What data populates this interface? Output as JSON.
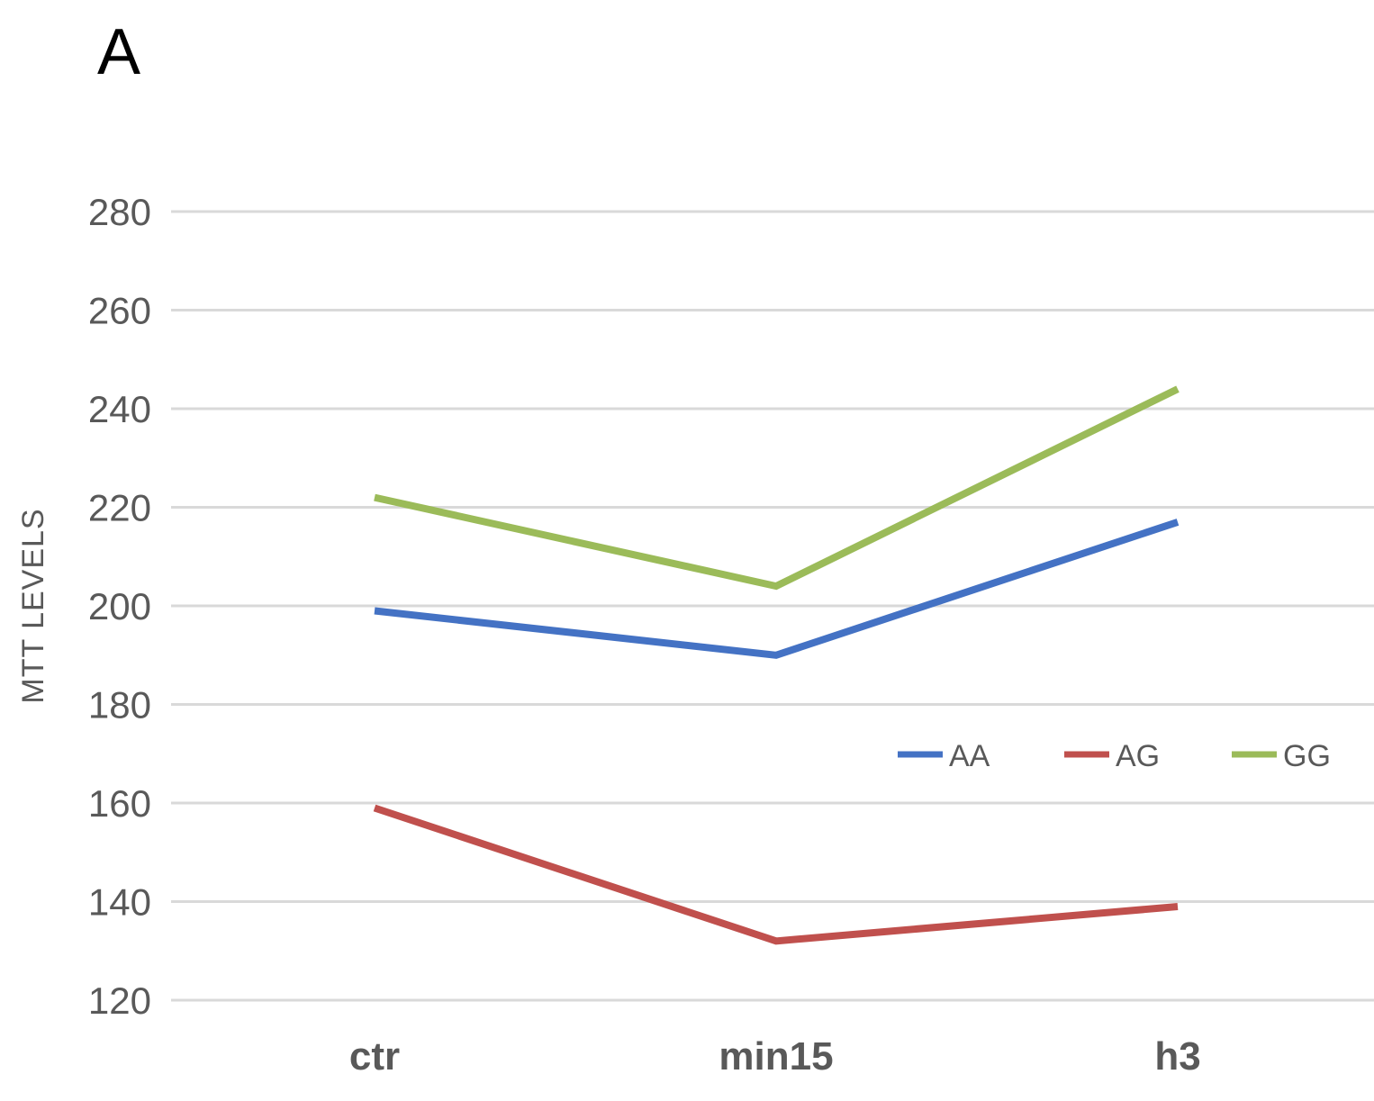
{
  "panel_label": "A",
  "chart_data": {
    "type": "line",
    "title": "",
    "xlabel": "",
    "ylabel": "MTT LEVELS",
    "categories": [
      "ctr",
      "min15",
      "h3"
    ],
    "ylim": [
      120,
      280
    ],
    "yticks": [
      120,
      140,
      160,
      180,
      200,
      220,
      240,
      260,
      280
    ],
    "grid": true,
    "legend_position": "right",
    "series": [
      {
        "name": "AA",
        "color": "#4472C4",
        "values": [
          199,
          190,
          217
        ]
      },
      {
        "name": "AG",
        "color": "#C0504D",
        "values": [
          159,
          132,
          139
        ]
      },
      {
        "name": "GG",
        "color": "#9BBB59",
        "values": [
          222,
          204,
          244
        ]
      }
    ]
  }
}
